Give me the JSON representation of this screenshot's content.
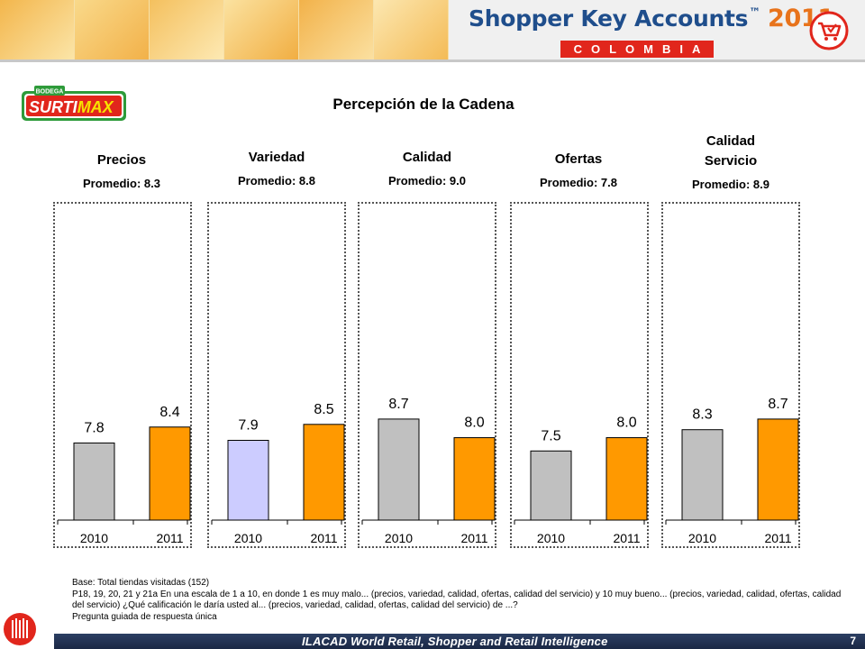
{
  "header": {
    "brand": "Shopper Key Accounts",
    "brand_tm": "™",
    "brand_year": "2011",
    "country": "COLOMBIA"
  },
  "store_logo": {
    "top_word": "BODEGA",
    "name_a": "SURTI",
    "name_b": "MAX"
  },
  "title": "Percepción de la Cadena",
  "chart_data": {
    "type": "bar",
    "title": "Percepción de la Cadena",
    "ylim": [
      0,
      10
    ],
    "panels": [
      {
        "name": "Precios",
        "avg_label": "Promedio: 8.3",
        "categories": [
          "2010",
          "2011"
        ],
        "values": [
          7.8,
          8.4
        ],
        "colors": [
          "#c0c0c0",
          "#ff9900"
        ]
      },
      {
        "name": "Variedad",
        "avg_label": "Promedio: 8.8",
        "categories": [
          "2010",
          "2011"
        ],
        "values": [
          7.9,
          8.5
        ],
        "colors": [
          "#ccccff",
          "#ff9900"
        ]
      },
      {
        "name": "Calidad",
        "avg_label": "Promedio: 9.0",
        "categories": [
          "2010",
          "2011"
        ],
        "values": [
          8.7,
          8.0
        ],
        "colors": [
          "#c0c0c0",
          "#ff9900"
        ]
      },
      {
        "name": "Ofertas",
        "avg_label": "Promedio: 7.8",
        "categories": [
          "2010",
          "2011"
        ],
        "values": [
          7.5,
          8.0
        ],
        "colors": [
          "#c0c0c0",
          "#ff9900"
        ]
      },
      {
        "name_lines": [
          "Calidad",
          "Servicio"
        ],
        "avg_label": "Promedio: 8.9",
        "categories": [
          "2010",
          "2011"
        ],
        "values": [
          8.3,
          8.7
        ],
        "colors": [
          "#c0c0c0",
          "#ff9900"
        ]
      }
    ]
  },
  "notes": {
    "base": "Base: Total tiendas visitadas  (152)",
    "question": "P18, 19, 20, 21 y 21a En una escala de 1 a 10, en donde 1 es muy malo... (precios, variedad, calidad, ofertas, calidad del servicio)  y 10 muy bueno...  (precios, variedad, calidad, ofertas, calidad del servicio) ¿Qué calificación le daría usted al... (precios, variedad, calidad, ofertas, calidad del servicio) de ...?",
    "type": "Pregunta guiada de respuesta única"
  },
  "footer": {
    "bar_text": "ILACAD World Retail, Shopper and Retail Intelligence",
    "page": "7"
  },
  "colors": {
    "brand_blue": "#1f4e8c",
    "brand_orange": "#e8731b",
    "country_red": "#e1261c",
    "bar_orange": "#ff9900",
    "bar_gray": "#c0c0c0",
    "bar_lavender": "#ccccff"
  }
}
